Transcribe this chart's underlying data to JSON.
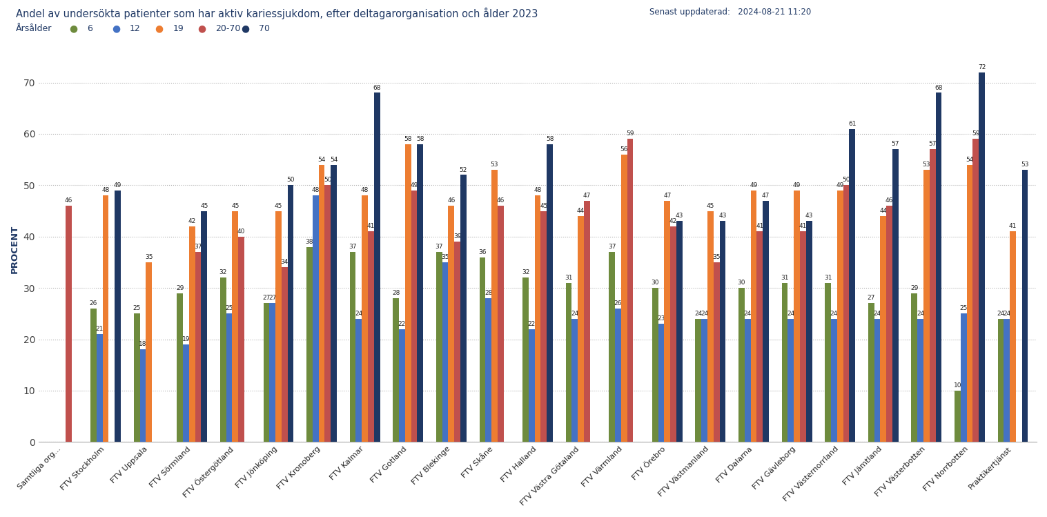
{
  "title": "Andel av undersökta patienter som har aktiv kariessjukdom, efter deltagarorganisation och ålder 2023",
  "subtitle_update": "Senast uppdaterad:   2024-08-21 11:20",
  "ylabel": "PROCENT",
  "legend_label": "Årsålder",
  "legend_items": [
    "6",
    "12",
    "19",
    "20-70",
    "70"
  ],
  "colors": {
    "6": "#6e8b3d",
    "12": "#4472c4",
    "19": "#ed7d31",
    "20-70": "#c0504d",
    "70": "#1f3864"
  },
  "categories": [
    "Samtliga org...",
    "FTV Stockholm",
    "FTV Uppsala",
    "FTV Sörmland",
    "FTV Östergötland",
    "FTV Jönköping",
    "FTV Kronoberg",
    "FTV Kalmar",
    "FTV Gotland",
    "FTV Blekinge",
    "FTV Skåne",
    "FTV Halland",
    "FTV Västra Götaland",
    "FTV Värmland",
    "FTV Örebro",
    "FTV Västmanland",
    "FTV Dalarna",
    "FTV Gävleborg",
    "FTV Västernorrland",
    "FTV Jämtland",
    "FTV Västerbotten",
    "FTV Norrbotten",
    "Praktikertjänst"
  ],
  "data": {
    "6": [
      null,
      26,
      25,
      29,
      32,
      27,
      38,
      37,
      28,
      37,
      36,
      32,
      31,
      37,
      30,
      24,
      30,
      31,
      31,
      27,
      29,
      10,
      24
    ],
    "12": [
      null,
      21,
      18,
      19,
      25,
      27,
      48,
      24,
      22,
      35,
      28,
      22,
      24,
      26,
      23,
      24,
      24,
      24,
      24,
      24,
      24,
      25,
      24
    ],
    "19": [
      null,
      48,
      35,
      42,
      45,
      45,
      54,
      48,
      58,
      46,
      53,
      48,
      44,
      56,
      47,
      45,
      49,
      49,
      49,
      44,
      53,
      54,
      41
    ],
    "20-70": [
      46,
      null,
      null,
      37,
      40,
      34,
      50,
      41,
      49,
      39,
      46,
      45,
      47,
      59,
      42,
      35,
      41,
      41,
      50,
      46,
      57,
      59,
      null
    ],
    "70": [
      null,
      49,
      null,
      45,
      null,
      50,
      54,
      68,
      58,
      52,
      null,
      58,
      null,
      null,
      43,
      43,
      47,
      43,
      61,
      57,
      68,
      72,
      53
    ]
  },
  "ylim": [
    0,
    75
  ],
  "yticks": [
    0,
    10,
    20,
    30,
    40,
    50,
    60,
    70
  ],
  "background_color": "#ffffff",
  "grid_color": "#b0b0b0"
}
